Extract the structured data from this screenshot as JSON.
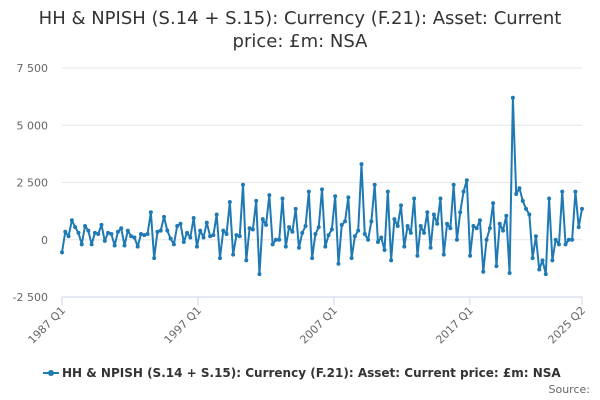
{
  "chart_data": {
    "type": "line",
    "title_lines": [
      "HH & NPISH (S.14 + S.15): Currency (F.21): Asset: Current",
      "price: £m: NSA"
    ],
    "xlabel": "",
    "ylabel": "",
    "x_range": [
      1987.0,
      2025.25
    ],
    "ylim": [
      -2500,
      7500
    ],
    "y_ticks": [
      {
        "value": -2500,
        "label": "-2 500"
      },
      {
        "value": 0,
        "label": "0"
      },
      {
        "value": 2500,
        "label": "2 500"
      },
      {
        "value": 5000,
        "label": "5 000"
      },
      {
        "value": 7500,
        "label": "7 500"
      }
    ],
    "x_ticks": [
      {
        "value": 1987.0,
        "label": "1987 Q1"
      },
      {
        "value": 1997.0,
        "label": "1997 Q1"
      },
      {
        "value": 2007.0,
        "label": "2007 Q1"
      },
      {
        "value": 2017.0,
        "label": "2017 Q1"
      },
      {
        "value": 2025.25,
        "label": "2025 Q2"
      }
    ],
    "grid": "horizontal",
    "legend_position": "bottom",
    "series": [
      {
        "name": "HH & NPISH (S.14 + S.15): Currency (F.21): Asset: Current price: £m: NSA",
        "color": "#1f7ab4",
        "start": "1987 Q1",
        "frequency": "quarterly",
        "values": [
          -550,
          350,
          150,
          850,
          550,
          300,
          -200,
          600,
          400,
          -200,
          300,
          250,
          650,
          -50,
          300,
          250,
          -250,
          350,
          500,
          -250,
          400,
          150,
          100,
          -300,
          250,
          200,
          250,
          1200,
          -800,
          350,
          400,
          1000,
          400,
          50,
          -200,
          600,
          700,
          -100,
          300,
          100,
          950,
          -300,
          400,
          100,
          750,
          150,
          200,
          1100,
          -800,
          400,
          250,
          1650,
          -650,
          200,
          150,
          2400,
          -900,
          500,
          450,
          1700,
          -1500,
          900,
          650,
          1950,
          -200,
          0,
          0,
          1800,
          -300,
          550,
          350,
          1350,
          -350,
          300,
          600,
          2100,
          -800,
          250,
          550,
          2200,
          -300,
          200,
          450,
          1900,
          -1050,
          650,
          800,
          1850,
          -800,
          150,
          400,
          3300,
          250,
          0,
          800,
          2400,
          -100,
          100,
          -450,
          2100,
          -900,
          900,
          600,
          1500,
          -300,
          600,
          300,
          1800,
          -700,
          600,
          300,
          1200,
          -350,
          1100,
          700,
          1800,
          -650,
          700,
          500,
          2400,
          0,
          1200,
          2100,
          2600,
          -700,
          600,
          500,
          850,
          -1400,
          0,
          500,
          1600,
          -1150,
          700,
          400,
          1050,
          -1450,
          6200,
          2000,
          2250,
          1700,
          1350,
          1100,
          -800,
          150,
          -1300,
          -900,
          -1500,
          1800,
          -900,
          0,
          -200,
          2100,
          -200,
          0,
          0,
          2100,
          550,
          1350
        ]
      }
    ]
  },
  "credits": "Source: "
}
